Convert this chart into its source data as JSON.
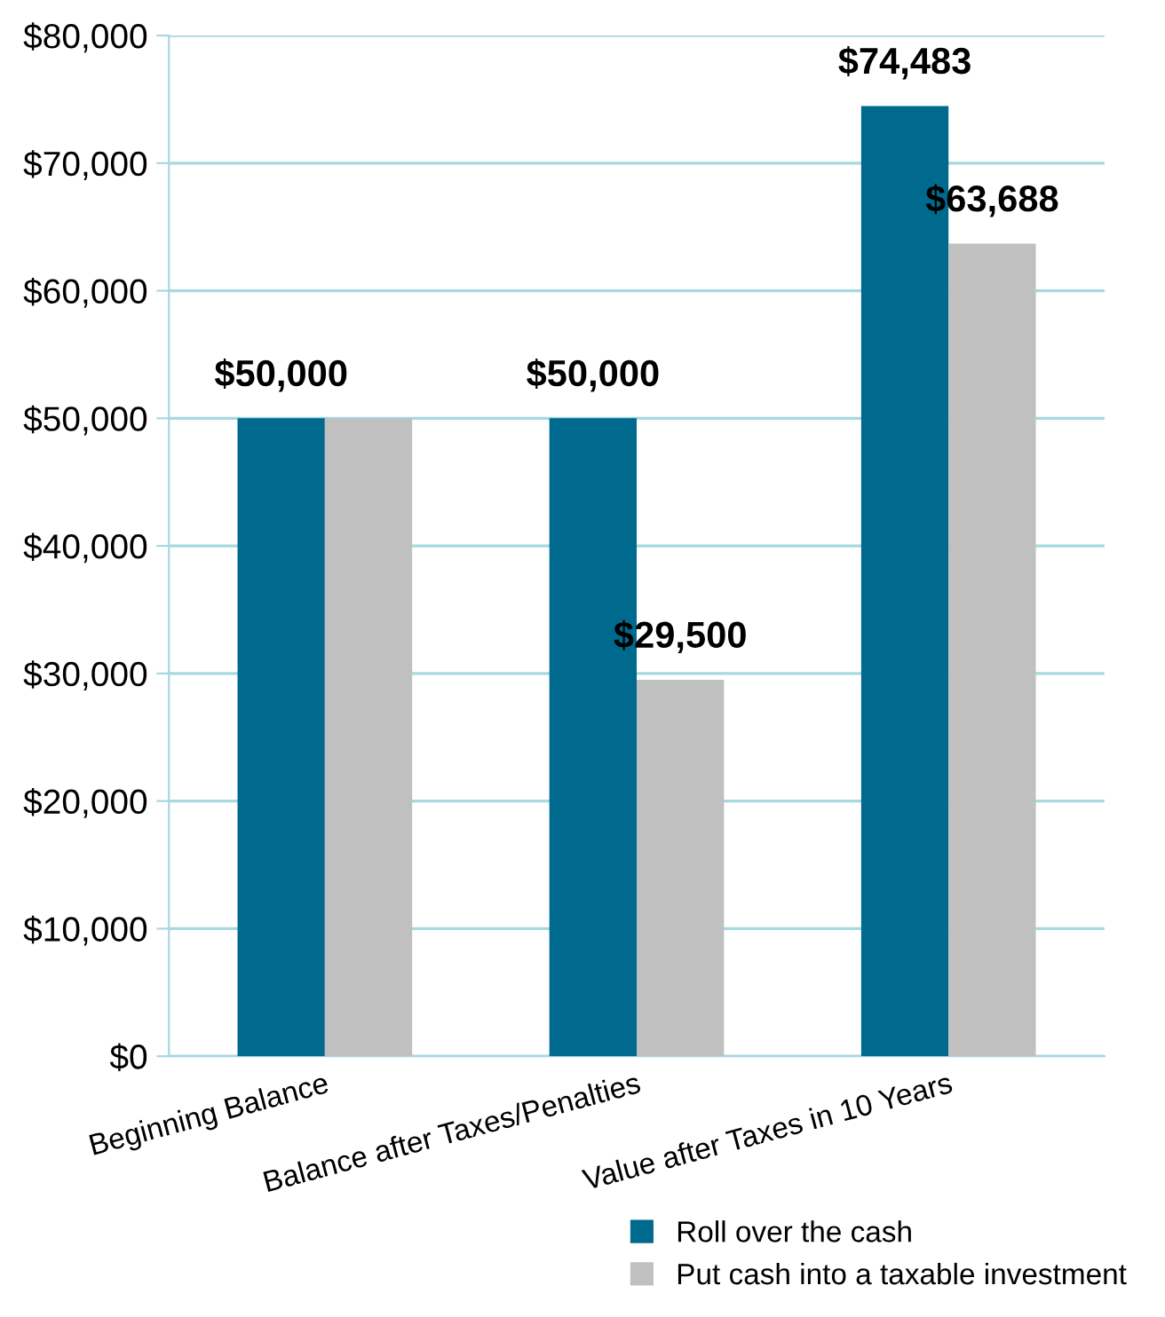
{
  "chart_data": {
    "type": "bar",
    "categories": [
      "Beginning Balance",
      "Balance after Taxes/Penalties",
      "Value after Taxes in 10 Years"
    ],
    "series": [
      {
        "name": "Roll over the cash",
        "color": "#006a8e",
        "values": [
          50000,
          50000,
          74483
        ],
        "value_labels": [
          "$50,000",
          "$50,000",
          "$74,483"
        ]
      },
      {
        "name": "Put cash into a taxable investment",
        "color": "#c0c0c0",
        "values": [
          50000,
          29500,
          63688
        ],
        "value_labels": [
          null,
          "$29,500",
          "$63,688"
        ]
      }
    ],
    "ylim": [
      0,
      80000
    ],
    "yticks": [
      {
        "value": 0,
        "label": "$0"
      },
      {
        "value": 10000,
        "label": "$10,000"
      },
      {
        "value": 20000,
        "label": "$20,000"
      },
      {
        "value": 30000,
        "label": "$30,000"
      },
      {
        "value": 40000,
        "label": "$40,000"
      },
      {
        "value": 50000,
        "label": "$50,000"
      },
      {
        "value": 60000,
        "label": "$60,000"
      },
      {
        "value": 70000,
        "label": "$70,000"
      },
      {
        "value": 80000,
        "label": "$80,000"
      }
    ],
    "grid": "y",
    "legend": "bottom right"
  }
}
